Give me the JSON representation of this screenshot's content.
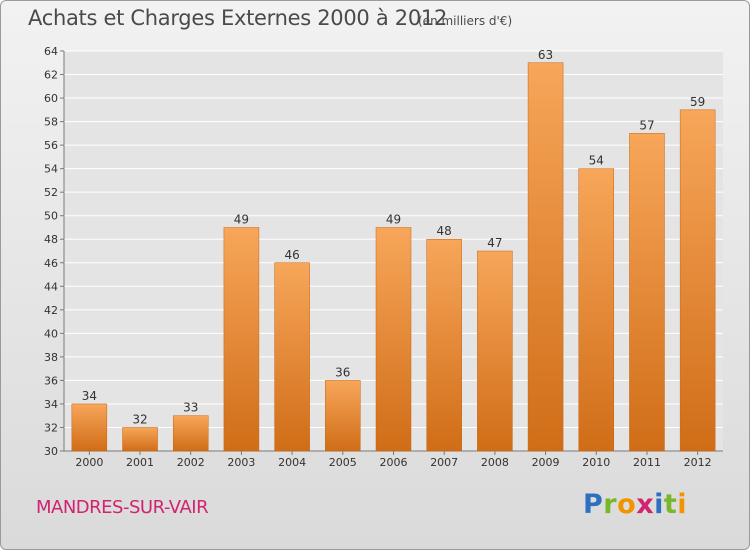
{
  "header": {
    "title": "Achats et Charges Externes 2000 à 2012",
    "subtitle": "(en milliers d'€)"
  },
  "footer": {
    "commune": "MANDRES-SUR-VAIR",
    "brand_letters": [
      {
        "char": "P",
        "color": "#2e6fbf"
      },
      {
        "char": "r",
        "color": "#76b82a"
      },
      {
        "char": "o",
        "color": "#f29400"
      },
      {
        "char": "x",
        "color": "#d1236f"
      },
      {
        "char": "i",
        "color": "#2e6fbf"
      },
      {
        "char": "t",
        "color": "#76b82a"
      },
      {
        "char": "i",
        "color": "#f29400"
      }
    ]
  },
  "colors": {
    "bar_light": "#f7a65a",
    "bar_dark": "#d06d17",
    "axis": "#7a7a7a",
    "grid": "#ffffff",
    "plot_bg": "#e4e4e4"
  },
  "chart_data": {
    "type": "bar",
    "title": "Achats et Charges Externes 2000 à 2012",
    "subtitle": "(en milliers d'€)",
    "categories": [
      "2000",
      "2001",
      "2002",
      "2003",
      "2004",
      "2005",
      "2006",
      "2007",
      "2008",
      "2009",
      "2010",
      "2011",
      "2012"
    ],
    "values": [
      34,
      32,
      33,
      49,
      46,
      36,
      49,
      48,
      47,
      63,
      54,
      57,
      59
    ],
    "data_labels": [
      "34",
      "32",
      "33",
      "49",
      "46",
      "36",
      "49",
      "48",
      "47",
      "63",
      "54",
      "57",
      "59"
    ],
    "ylim": [
      30,
      64
    ],
    "yticks": [
      30,
      32,
      34,
      36,
      38,
      40,
      42,
      44,
      46,
      48,
      50,
      52,
      54,
      56,
      58,
      60,
      62,
      64
    ],
    "xlabel": "",
    "ylabel": "",
    "grid": true,
    "legend": "none"
  }
}
